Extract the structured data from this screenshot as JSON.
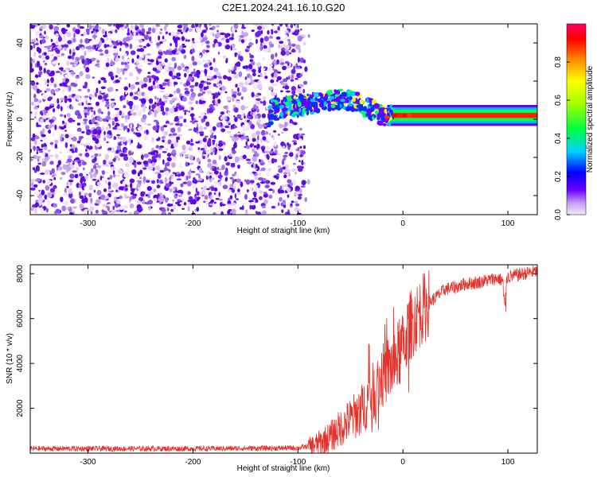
{
  "chart_data": [
    {
      "type": "heatmap",
      "title": "C2E1.2024.241.16.10.G20",
      "xlabel": "Height of straight line (km)",
      "ylabel": "Frequency (Hz)",
      "xlim": [
        -355,
        128
      ],
      "ylim": [
        -50,
        50
      ],
      "xticks": [
        -300,
        -200,
        -100,
        0,
        100
      ],
      "yticks": [
        -40,
        -20,
        0,
        20,
        40
      ],
      "colorbar": {
        "label": "Normalized spectral amplitude",
        "range": [
          0,
          1
        ],
        "ticks": [
          "0.0",
          "0.2",
          "0.4",
          "0.6",
          "0.8"
        ],
        "colormap": [
          "#f4ecfb",
          "#6a00ff",
          "#0000ff",
          "#00d0ff",
          "#00ff40",
          "#a0ff00",
          "#ffff00",
          "#ff8000",
          "#ff0000",
          "#ff0060"
        ]
      },
      "features": {
        "noise_region_x": [
          -355,
          -95
        ],
        "signal_trace": [
          {
            "x": -125,
            "y": 5
          },
          {
            "x": -100,
            "y": 7
          },
          {
            "x": -80,
            "y": 9
          },
          {
            "x": -60,
            "y": 11
          },
          {
            "x": -40,
            "y": 8
          },
          {
            "x": -20,
            "y": 2
          },
          {
            "x": 0,
            "y": 2
          },
          {
            "x": 50,
            "y": 2
          },
          {
            "x": 100,
            "y": 2
          },
          {
            "x": 128,
            "y": 2
          }
        ]
      }
    },
    {
      "type": "line",
      "title": "",
      "xlabel": "Height of straight line (km)",
      "ylabel": "SNR (10 * v/v)",
      "xlim": [
        -355,
        128
      ],
      "ylim": [
        0,
        8400
      ],
      "xticks": [
        -300,
        -200,
        -100,
        0,
        100
      ],
      "yticks": [
        2000,
        4000,
        6000,
        8000
      ],
      "color": "#e8302a",
      "series": [
        {
          "name": "",
          "x": [
            -355,
            -300,
            -200,
            -100,
            -85,
            -70,
            -60,
            -50,
            -40,
            -30,
            -20,
            -15,
            -10,
            -5,
            0,
            5,
            10,
            20,
            30,
            40,
            50,
            60,
            70,
            80,
            90,
            95,
            100,
            110,
            120,
            128
          ],
          "y": [
            200,
            200,
            200,
            230,
            350,
            700,
            1100,
            1500,
            1900,
            2600,
            3400,
            3700,
            3900,
            4300,
            4700,
            5500,
            5900,
            6500,
            6900,
            7300,
            7400,
            7550,
            7600,
            7700,
            7800,
            7700,
            7850,
            7950,
            8050,
            8100
          ]
        }
      ]
    }
  ]
}
